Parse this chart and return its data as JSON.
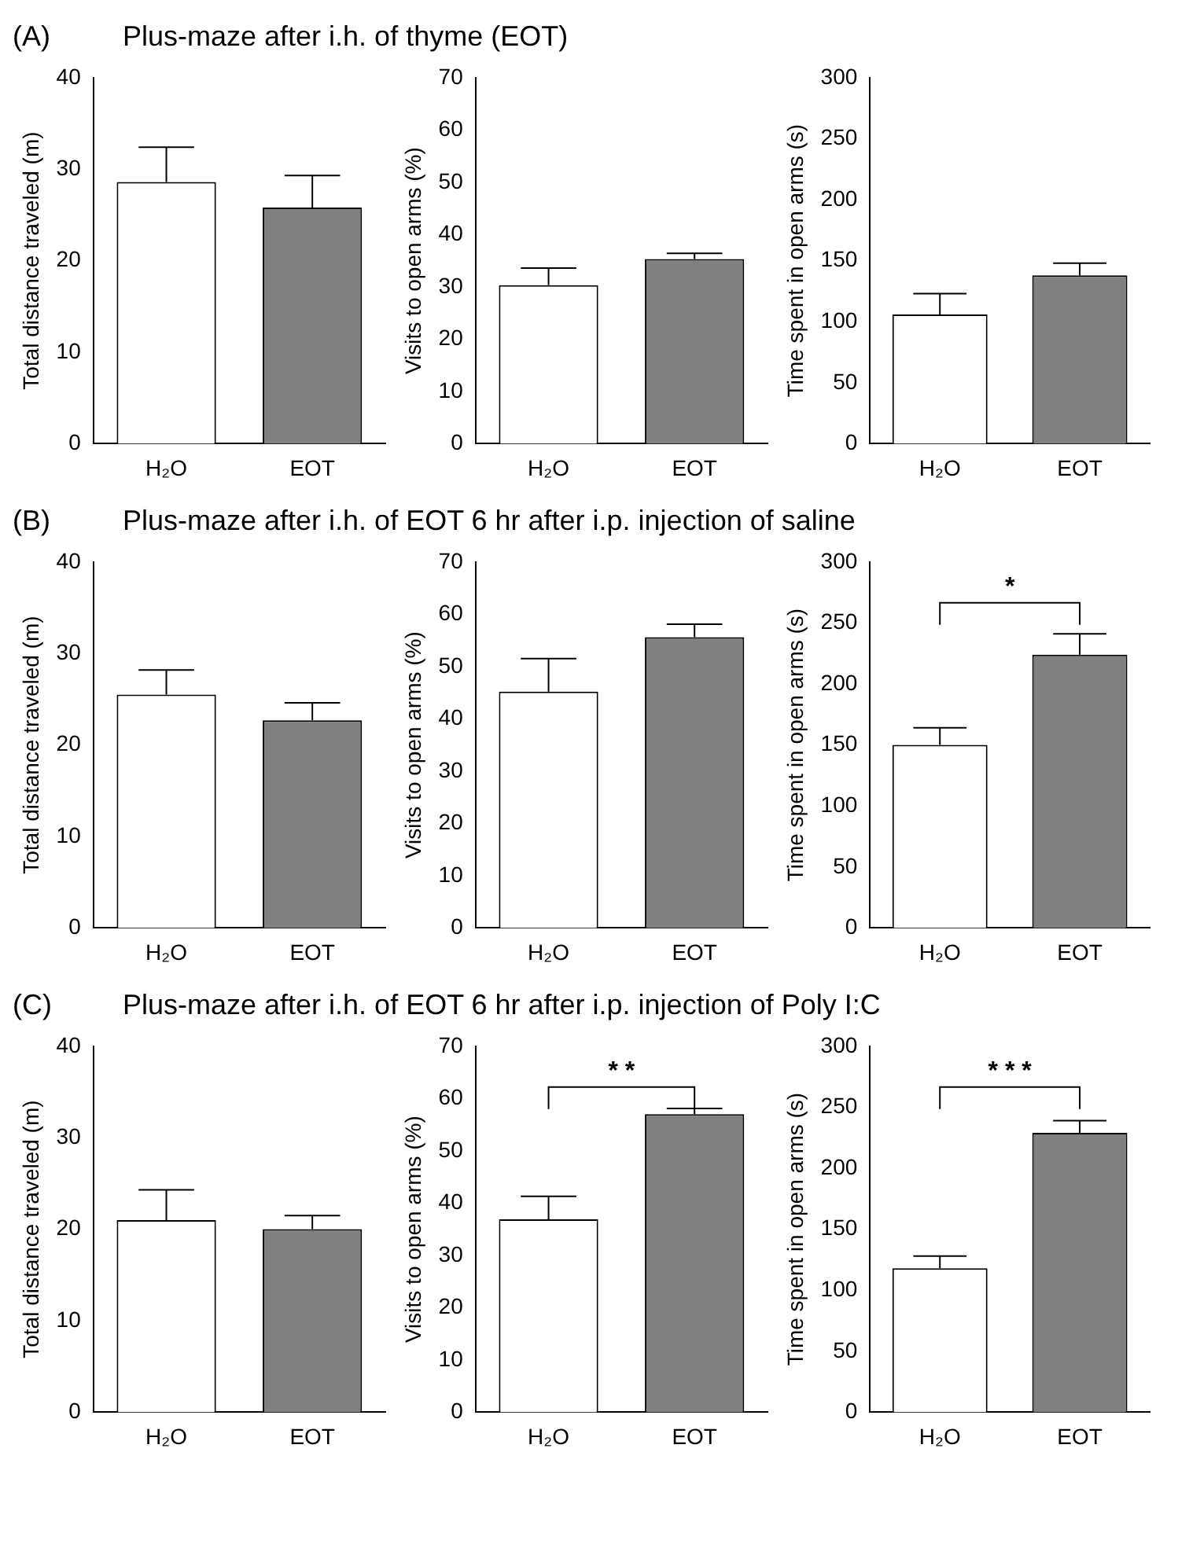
{
  "chart_data": [
    {
      "type": "bar",
      "title": "Plus-maze after i.h. of thyme (EOT)",
      "annotations": [
        "(A)"
      ],
      "categories": [
        "H₂O",
        "EOT"
      ],
      "values": [
        28.6,
        25.8
      ],
      "errors": [
        [
          28.6,
          32.4
        ],
        [
          25.8,
          29.3
        ]
      ],
      "colors": [
        "#ffffff",
        "#808080"
      ],
      "ylabel": "Total distance traveled (m)",
      "ylim": [
        0,
        40
      ],
      "yticks": [
        0,
        10,
        20,
        30,
        40
      ]
    },
    {
      "type": "bar",
      "categories": [
        "H₂O",
        "EOT"
      ],
      "values": [
        30.3,
        35.3
      ],
      "errors": [
        [
          30.3,
          33.6
        ],
        [
          35.3,
          36.4
        ]
      ],
      "colors": [
        "#ffffff",
        "#808080"
      ],
      "ylabel": "Visits to open arms (%)",
      "ylim": [
        0,
        70
      ],
      "yticks": [
        0,
        10,
        20,
        30,
        40,
        50,
        60,
        70
      ]
    },
    {
      "type": "bar",
      "categories": [
        "H₂O",
        "EOT"
      ],
      "values": [
        106,
        138
      ],
      "errors": [
        [
          106,
          123
        ],
        [
          138,
          148
        ]
      ],
      "colors": [
        "#ffffff",
        "#808080"
      ],
      "ylabel": "Time spent in open arms (s)",
      "ylim": [
        0,
        300
      ],
      "yticks": [
        0,
        50,
        100,
        150,
        200,
        250,
        300
      ]
    },
    {
      "type": "bar",
      "title": "Plus-maze after i.h. of EOT 6 hr after i.p. injection of saline",
      "annotations": [
        "(B)"
      ],
      "categories": [
        "H₂O",
        "EOT"
      ],
      "values": [
        25.5,
        22.7
      ],
      "errors": [
        [
          25.5,
          28.2
        ],
        [
          22.7,
          24.6
        ]
      ],
      "colors": [
        "#ffffff",
        "#808080"
      ],
      "ylabel": "Total distance traveled (m)",
      "ylim": [
        0,
        40
      ],
      "yticks": [
        0,
        10,
        20,
        30,
        40
      ]
    },
    {
      "type": "bar",
      "categories": [
        "H₂O",
        "EOT"
      ],
      "values": [
        45.2,
        55.6
      ],
      "errors": [
        [
          45.2,
          51.5
        ],
        [
          55.6,
          58.1
        ]
      ],
      "colors": [
        "#ffffff",
        "#808080"
      ],
      "ylabel": "Visits to open arms (%)",
      "ylim": [
        0,
        70
      ],
      "yticks": [
        0,
        10,
        20,
        30,
        40,
        50,
        60,
        70
      ]
    },
    {
      "type": "bar",
      "categories": [
        "H₂O",
        "EOT"
      ],
      "values": [
        150,
        224
      ],
      "errors": [
        [
          150,
          164
        ],
        [
          224,
          241
        ]
      ],
      "colors": [
        "#ffffff",
        "#808080"
      ],
      "ylabel": "Time spent in open arms (s)",
      "ylim": [
        0,
        300
      ],
      "yticks": [
        0,
        50,
        100,
        150,
        200,
        250,
        300
      ],
      "annotations": [
        "*"
      ]
    },
    {
      "type": "bar",
      "title": "Plus-maze after i.h. of EOT 6 hr after i.p. injection of Poly I:C",
      "annotations": [
        "(C)"
      ],
      "categories": [
        "H₂O",
        "EOT"
      ],
      "values": [
        21.0,
        20.0
      ],
      "errors": [
        [
          21.0,
          24.3
        ],
        [
          20.0,
          21.5
        ]
      ],
      "colors": [
        "#ffffff",
        "#808080"
      ],
      "ylabel": "Total distance traveled (m)",
      "ylim": [
        0,
        40
      ],
      "yticks": [
        0,
        10,
        20,
        30,
        40
      ]
    },
    {
      "type": "bar",
      "categories": [
        "H₂O",
        "EOT"
      ],
      "values": [
        36.9,
        57.0
      ],
      "errors": [
        [
          36.9,
          41.3
        ],
        [
          57.0,
          58.1
        ]
      ],
      "colors": [
        "#ffffff",
        "#808080"
      ],
      "ylabel": "Visits to open arms (%)",
      "ylim": [
        0,
        70
      ],
      "yticks": [
        0,
        10,
        20,
        30,
        40,
        50,
        60,
        70
      ],
      "annotations": [
        "* *"
      ]
    },
    {
      "type": "bar",
      "categories": [
        "H₂O",
        "EOT"
      ],
      "values": [
        118,
        229
      ],
      "errors": [
        [
          118,
          128
        ],
        [
          229,
          239
        ]
      ],
      "colors": [
        "#ffffff",
        "#808080"
      ],
      "ylabel": "Time spent in open arms (s)",
      "ylim": [
        0,
        300
      ],
      "yticks": [
        0,
        50,
        100,
        150,
        200,
        250,
        300
      ],
      "annotations": [
        "* * *"
      ]
    }
  ]
}
